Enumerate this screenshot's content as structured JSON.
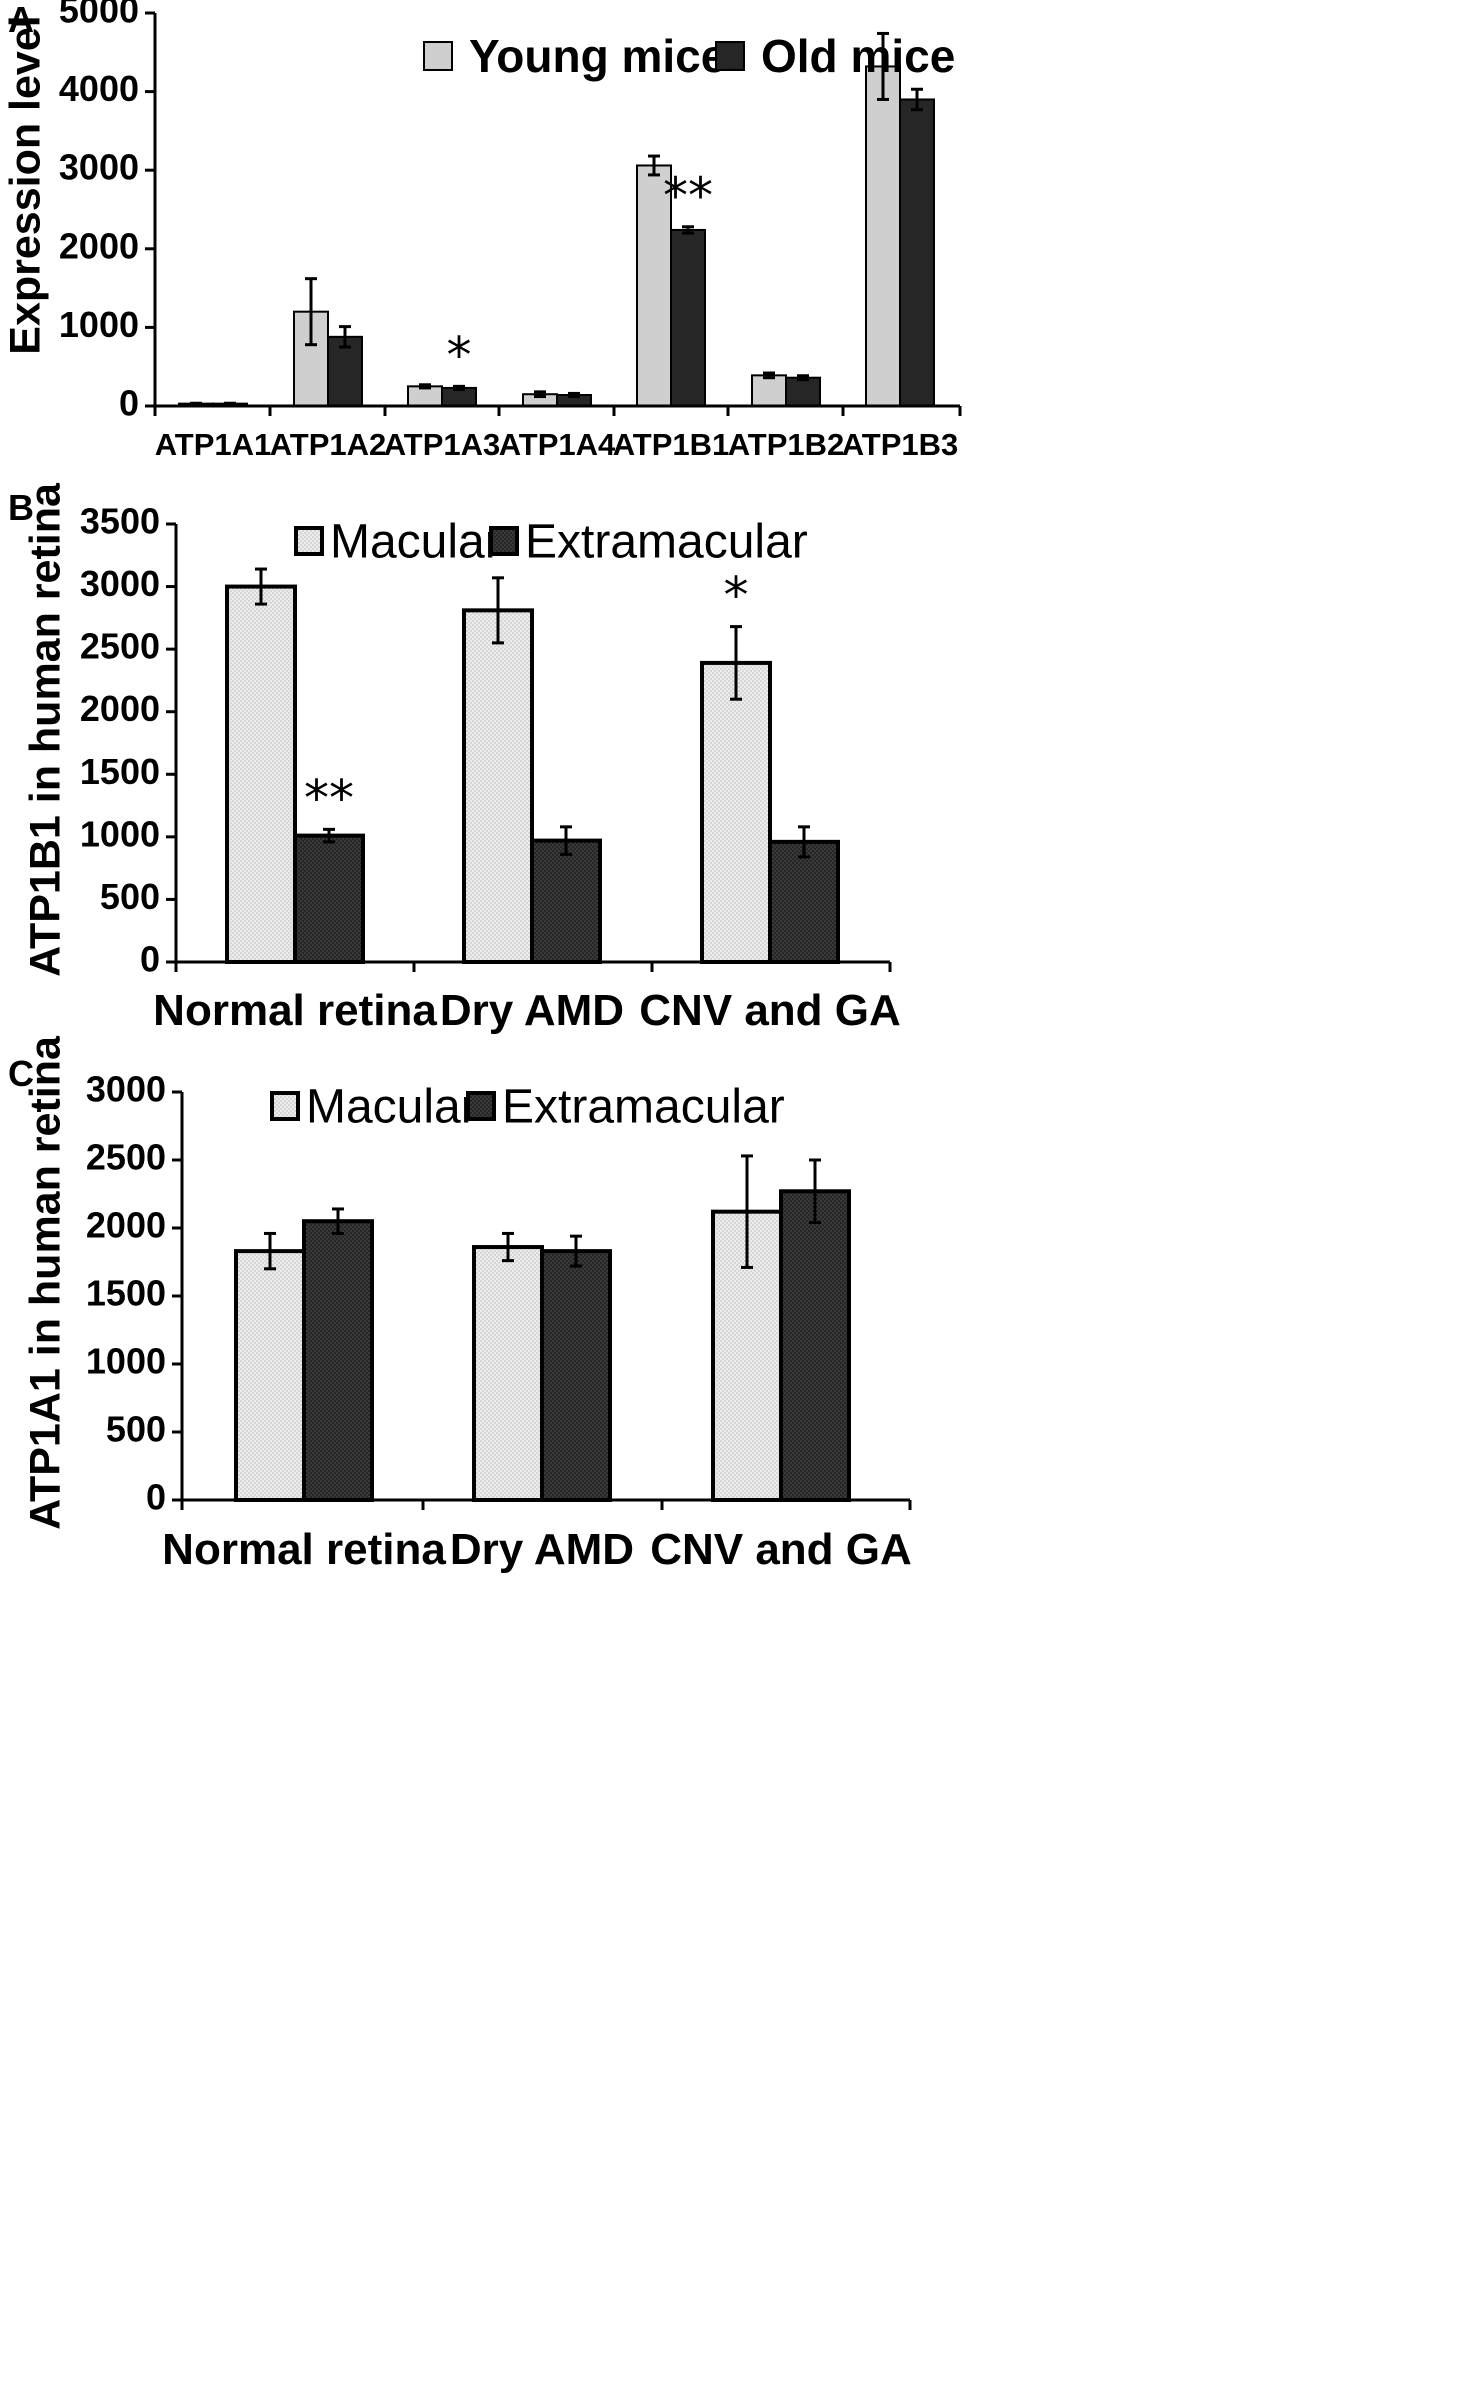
{
  "colors": {
    "young": "#cfcfcf",
    "old": "#222222",
    "macular": "#e9e9e9",
    "extramacular": "#2a2a2a",
    "axis": "#000000"
  },
  "chart_data": [
    {
      "panel": "A",
      "type": "bar",
      "ylabel": "Expression level",
      "ylim": [
        0,
        5000
      ],
      "yticks": [
        0,
        1000,
        2000,
        3000,
        4000,
        5000
      ],
      "categories": [
        "ATP1A1",
        "ATP1A2",
        "ATP1A3",
        "ATP1A4",
        "ATP1B1",
        "ATP1B2",
        "ATP1B3"
      ],
      "series": [
        {
          "name": "Young mice",
          "values": [
            30,
            1200,
            250,
            150,
            3060,
            390,
            4320
          ],
          "errors": [
            5,
            420,
            20,
            30,
            120,
            30,
            420
          ]
        },
        {
          "name": "Old mice",
          "values": [
            30,
            880,
            230,
            140,
            2240,
            360,
            3900
          ],
          "errors": [
            5,
            130,
            20,
            20,
            40,
            25,
            130
          ]
        }
      ],
      "annotations": [
        {
          "category": "ATP1A3",
          "series": 1,
          "text": "*"
        },
        {
          "category": "ATP1B1",
          "series": 1,
          "text": "**"
        }
      ],
      "legend": "top-center",
      "grid": false
    },
    {
      "panel": "B",
      "type": "bar",
      "ylabel": "ATP1B1 in human retina",
      "ylim": [
        0,
        3500
      ],
      "yticks": [
        0,
        500,
        1000,
        1500,
        2000,
        2500,
        3000,
        3500
      ],
      "categories": [
        "Normal retina",
        "Dry AMD",
        "CNV and GA"
      ],
      "series": [
        {
          "name": "Macular",
          "values": [
            3000,
            2810,
            2390
          ],
          "errors": [
            140,
            260,
            290
          ]
        },
        {
          "name": "Extramacular",
          "values": [
            1010,
            970,
            960
          ],
          "errors": [
            50,
            110,
            120
          ]
        }
      ],
      "annotations": [
        {
          "category": "Normal retina",
          "series": 1,
          "text": "**"
        },
        {
          "category": "CNV and GA",
          "series": 0,
          "text": "*"
        }
      ],
      "legend": "top-center",
      "grid": false
    },
    {
      "panel": "C",
      "type": "bar",
      "ylabel": "ATP1A1 in human retina",
      "ylim": [
        0,
        3000
      ],
      "yticks": [
        0,
        500,
        1000,
        1500,
        2000,
        2500,
        3000
      ],
      "categories": [
        "Normal retina",
        "Dry AMD",
        "CNV and GA"
      ],
      "series": [
        {
          "name": "Macular",
          "values": [
            1830,
            1860,
            2120
          ],
          "errors": [
            130,
            100,
            410
          ]
        },
        {
          "name": "Extramacular",
          "values": [
            2050,
            1830,
            2270
          ],
          "errors": [
            90,
            110,
            230
          ]
        }
      ],
      "annotations": [],
      "legend": "top-center",
      "grid": false
    }
  ]
}
